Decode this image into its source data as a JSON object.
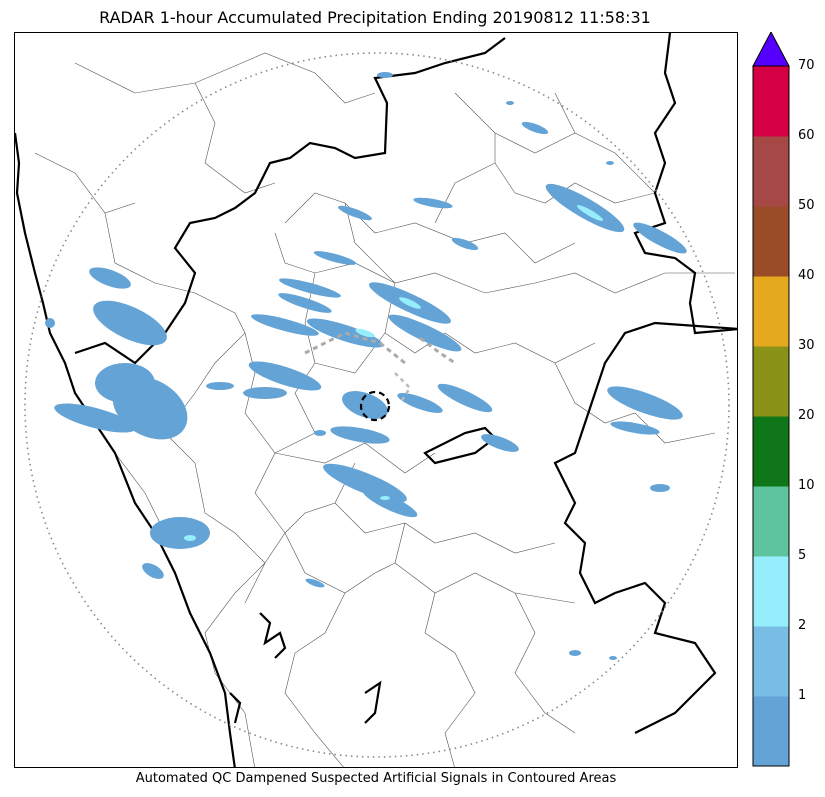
{
  "title": "RADAR 1-hour Accumulated Precipitation Ending 20190812 11:58:31",
  "caption": "Automated QC Dampened Suspected Artificial Signals in Contoured Areas",
  "colorbar": {
    "levels": [
      "1",
      "2",
      "5",
      "10",
      "20",
      "30",
      "40",
      "50",
      "60",
      "70"
    ],
    "colors": [
      "#64a3d6",
      "#78bde3",
      "#96eefd",
      "#5ec49d",
      "#0f7719",
      "#8a9318",
      "#e5a91d",
      "#9a4c28",
      "#a64845",
      "#d50044"
    ],
    "extend_color": "#5500ff"
  },
  "map": {
    "range_ring": "dotted",
    "qc_contour": "dashed"
  }
}
